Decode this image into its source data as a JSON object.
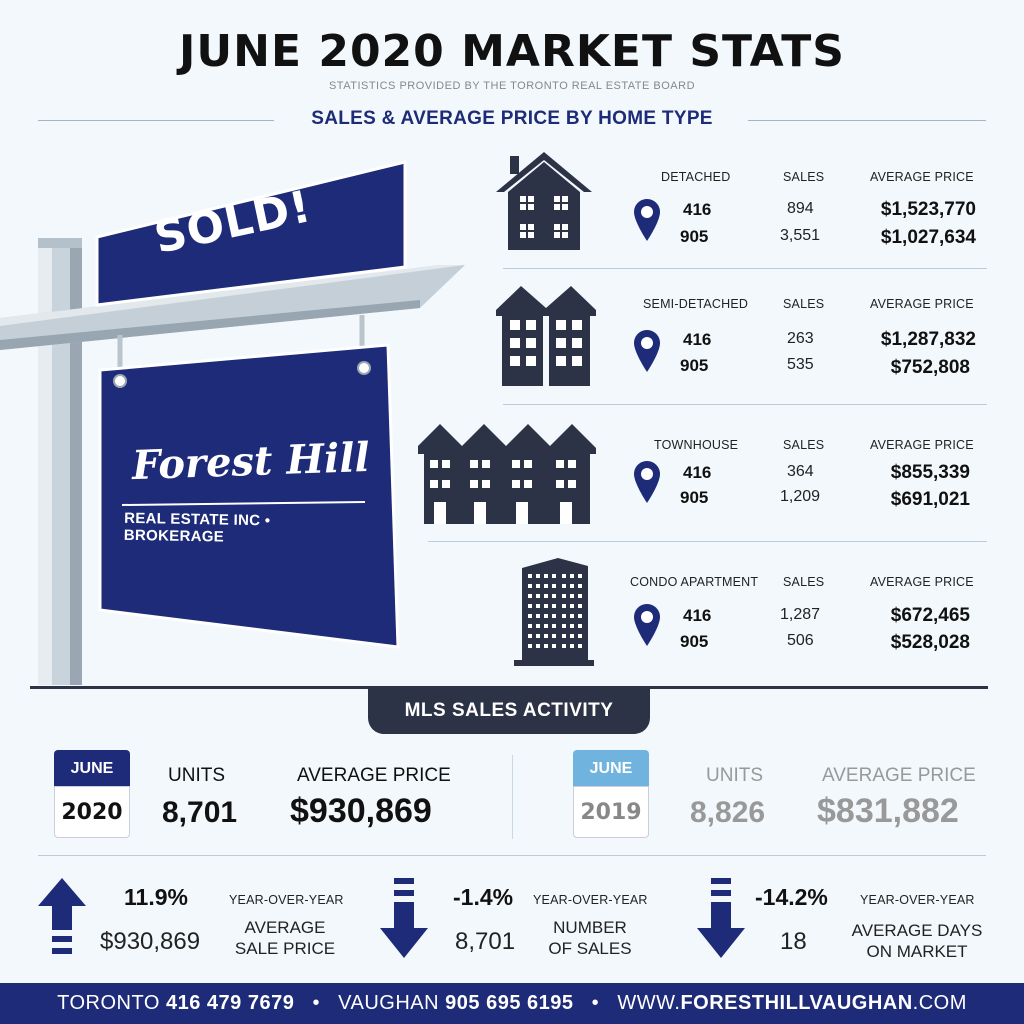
{
  "header": {
    "title": "JUNE 2020 MARKET STATS",
    "subtitle": "STATISTICS PROVIDED BY THE TORONTO REAL ESTATE BOARD",
    "section_title": "SALES & AVERAGE PRICE BY HOME TYPE"
  },
  "sign": {
    "sold_label": "SOLD!",
    "brand_name": "Forest Hill",
    "brand_sub": "REAL ESTATE INC • BROKERAGE"
  },
  "columns": {
    "sales": "SALES",
    "average_price": "AVERAGE PRICE"
  },
  "home_types": [
    {
      "name": "DETACHED",
      "icon": "house-icon",
      "rows": [
        {
          "code": "416",
          "sales": "894",
          "price": "$1,523,770"
        },
        {
          "code": "905",
          "sales": "3,551",
          "price": "$1,027,634"
        }
      ]
    },
    {
      "name": "SEMI-DETACHED",
      "icon": "semi-detached-icon",
      "rows": [
        {
          "code": "416",
          "sales": "263",
          "price": "$1,287,832"
        },
        {
          "code": "905",
          "sales": "535",
          "price": "$752,808"
        }
      ]
    },
    {
      "name": "TOWNHOUSE",
      "icon": "townhouse-icon",
      "rows": [
        {
          "code": "416",
          "sales": "364",
          "price": "$855,339"
        },
        {
          "code": "905",
          "sales": "1,209",
          "price": "$691,021"
        }
      ]
    },
    {
      "name": "CONDO APARTMENT",
      "icon": "condo-building-icon",
      "rows": [
        {
          "code": "416",
          "sales": "1,287",
          "price": "$672,465"
        },
        {
          "code": "905",
          "sales": "506",
          "price": "$528,028"
        }
      ]
    }
  ],
  "mls": {
    "tab_label": "MLS SALES ACTIVITY",
    "current": {
      "month": "JUNE",
      "year": "2020",
      "units_label": "UNITS",
      "units": "8,701",
      "avg_label": "AVERAGE PRICE",
      "avg_price": "$930,869"
    },
    "previous": {
      "month": "JUNE",
      "year": "2019",
      "units_label": "UNITS",
      "units": "8,826",
      "avg_label": "AVERAGE PRICE",
      "avg_price": "$831,882"
    }
  },
  "yoy": [
    {
      "direction": "up",
      "icon": "arrow-up-icon",
      "pct": "11.9%",
      "label": "YEAR-OVER-YEAR",
      "value": "$930,869",
      "desc_line1": "AVERAGE",
      "desc_line2": "SALE PRICE"
    },
    {
      "direction": "down",
      "icon": "arrow-down-icon",
      "pct": "-1.4%",
      "label": "YEAR-OVER-YEAR",
      "value": "8,701",
      "desc_line1": "NUMBER",
      "desc_line2": "OF SALES"
    },
    {
      "direction": "down",
      "icon": "arrow-down-icon",
      "pct": "-14.2%",
      "label": "YEAR-OVER-YEAR",
      "value": "18",
      "desc_line1": "AVERAGE DAYS",
      "desc_line2": "ON MARKET"
    }
  ],
  "footer": {
    "toronto_label": "TORONTO",
    "toronto_phone": "416 479 7679",
    "vaughan_label": "VAUGHAN",
    "vaughan_phone": "905 695 6195",
    "web_prefix": "WWW.",
    "web_domain": "FORESTHILLVAUGHAN",
    "web_suffix": ".COM",
    "separator": "•"
  },
  "colors": {
    "navy": "#1e2b78",
    "dark": "#2d3346",
    "light_blue": "#6fb3de",
    "background": "#f2f8fb"
  }
}
